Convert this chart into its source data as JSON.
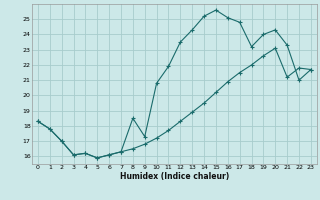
{
  "xlabel": "Humidex (Indice chaleur)",
  "bg_color": "#cce8e8",
  "grid_color": "#a8cccc",
  "line_color": "#1a6b6b",
  "line1_x": [
    0,
    1,
    2,
    3,
    4,
    5,
    6,
    7,
    8,
    9,
    10,
    11,
    12,
    13,
    14,
    15,
    16,
    17,
    18,
    19,
    20,
    21,
    22,
    23
  ],
  "line1_y": [
    18.3,
    17.8,
    17.0,
    16.1,
    16.2,
    15.9,
    16.1,
    16.3,
    18.5,
    17.3,
    20.8,
    21.9,
    23.5,
    24.3,
    25.2,
    25.6,
    25.1,
    24.8,
    23.2,
    24.0,
    24.3,
    23.3,
    21.0,
    21.7
  ],
  "line2_x": [
    0,
    1,
    2,
    3,
    4,
    5,
    6,
    7,
    8,
    9,
    10,
    11,
    12,
    13,
    14,
    15,
    16,
    17,
    18,
    19,
    20,
    21,
    22,
    23
  ],
  "line2_y": [
    18.3,
    17.8,
    17.0,
    16.1,
    16.2,
    15.9,
    16.1,
    16.3,
    16.5,
    16.8,
    17.2,
    17.7,
    18.3,
    18.9,
    19.5,
    20.2,
    20.9,
    21.5,
    22.0,
    22.6,
    23.1,
    21.2,
    21.8,
    21.7
  ],
  "xlim": [
    -0.5,
    23.5
  ],
  "ylim": [
    15.5,
    26.0
  ],
  "yticks": [
    16,
    17,
    18,
    19,
    20,
    21,
    22,
    23,
    24,
    25
  ],
  "xticks": [
    0,
    1,
    2,
    3,
    4,
    5,
    6,
    7,
    8,
    9,
    10,
    11,
    12,
    13,
    14,
    15,
    16,
    17,
    18,
    19,
    20,
    21,
    22,
    23
  ]
}
